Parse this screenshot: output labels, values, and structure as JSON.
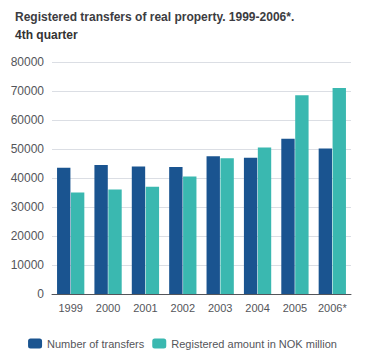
{
  "chart_data": {
    "type": "bar",
    "title": "Registered transfers of real property. 1999-2006*.",
    "subtitle": "4th quarter",
    "categories": [
      "1999",
      "2000",
      "2001",
      "2002",
      "2003",
      "2004",
      "2005",
      "2006*"
    ],
    "series": [
      {
        "name": "Number of transfers",
        "color": "#1a5490",
        "values": [
          43500,
          44500,
          44000,
          43800,
          47500,
          47000,
          53500,
          50200
        ]
      },
      {
        "name": "Registered amount in NOK million",
        "color": "#3ab8b0",
        "values": [
          35000,
          36000,
          37000,
          40500,
          46800,
          50500,
          68500,
          71000
        ]
      }
    ],
    "ylim": [
      0,
      80000
    ],
    "yticks": [
      0,
      10000,
      20000,
      30000,
      40000,
      50000,
      60000,
      70000,
      80000
    ],
    "grid": true,
    "legend": "bottom"
  }
}
